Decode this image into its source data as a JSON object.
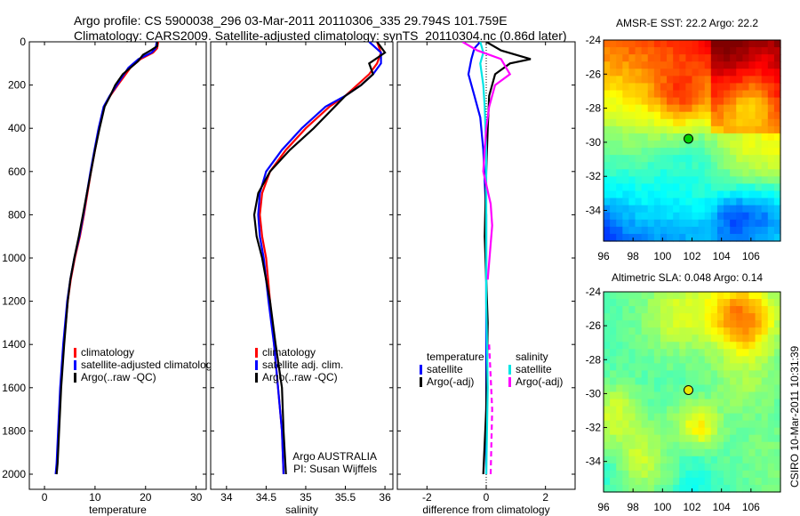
{
  "header": {
    "line1": "Argo profile: CS 5900038_296 03-Mar-2011 20110306_335 29.794S 101.759E",
    "line2": "Climatology: CARS2009. Satellite-adjusted climatology: synTS_20110304.nc (0.86d later)"
  },
  "colors": {
    "climatology": "#ff0000",
    "satellite": "#0000ff",
    "argo": "#000000",
    "sal_satellite": "#00e5e5",
    "sal_argo": "#ff00ff"
  },
  "chart_data": [
    {
      "type": "line",
      "id": "temperature",
      "xlabel": "temperature",
      "ylabel": "",
      "xlim": [
        -3,
        32
      ],
      "ylim": [
        2070,
        0
      ],
      "xticks": [
        0,
        10,
        20,
        30
      ],
      "yticks": [
        0,
        200,
        400,
        600,
        800,
        1000,
        1200,
        1400,
        1600,
        1800,
        2000
      ],
      "legend": {
        "position": "lower-middle",
        "entries": [
          "climatology",
          "satellite-adjusted climatology",
          "Argo(..raw -QC)"
        ]
      },
      "series": [
        {
          "name": "climatology",
          "color_key": "climatology",
          "x": [
            22.5,
            22.3,
            21.5,
            19.0,
            17.0,
            14.5,
            13.0,
            11.8,
            10.8,
            10.0,
            9.2,
            8.5,
            7.8,
            7.0,
            6.0,
            5.2,
            4.6,
            3.8,
            3.2,
            2.8,
            2.5,
            2.3
          ],
          "y": [
            0,
            30,
            50,
            80,
            120,
            200,
            250,
            300,
            400,
            500,
            600,
            700,
            800,
            900,
            1000,
            1100,
            1200,
            1400,
            1600,
            1800,
            1950,
            2000
          ]
        },
        {
          "name": "satellite-adjusted climatology",
          "color_key": "satellite",
          "x": [
            22.2,
            22.0,
            21.2,
            18.6,
            16.6,
            14.3,
            12.9,
            11.7,
            10.7,
            9.9,
            9.1,
            8.4,
            7.7,
            6.9,
            5.9,
            5.1,
            4.5,
            3.7,
            3.1,
            2.7,
            2.4,
            2.2
          ],
          "y": [
            0,
            30,
            50,
            80,
            120,
            200,
            250,
            300,
            400,
            500,
            600,
            700,
            800,
            900,
            1000,
            1100,
            1200,
            1400,
            1600,
            1800,
            1950,
            2000
          ]
        },
        {
          "name": "Argo(..raw -QC)",
          "color_key": "argo",
          "x": [
            22.3,
            22.3,
            21.0,
            19.5,
            18.5,
            17.0,
            15.5,
            14.0,
            13.0,
            11.9,
            10.9,
            10.0,
            9.2,
            8.4,
            7.6,
            6.8,
            5.9,
            5.1,
            4.6,
            3.9,
            3.3,
            2.9,
            2.6,
            2.4
          ],
          "y": [
            0,
            20,
            40,
            60,
            90,
            120,
            150,
            200,
            250,
            300,
            400,
            500,
            600,
            700,
            800,
            900,
            1000,
            1100,
            1200,
            1400,
            1600,
            1800,
            1950,
            2000
          ]
        }
      ]
    },
    {
      "type": "line",
      "id": "salinity",
      "xlabel": "salinity",
      "ylabel": "",
      "xlim": [
        33.8,
        36.1
      ],
      "ylim": [
        2070,
        0
      ],
      "xticks": [
        34,
        34.5,
        35,
        35.5,
        36
      ],
      "xticklabels": [
        "34",
        "34.5",
        "35",
        "35.5",
        "36"
      ],
      "legend": {
        "position": "lower-middle",
        "entries": [
          "climatology",
          "satellite adj. clim.",
          "Argo(..raw -QC)"
        ]
      },
      "annotation": [
        "Argo AUSTRALIA",
        "PI: Susan Wijffels"
      ],
      "series": [
        {
          "name": "climatology",
          "color_key": "climatology",
          "x": [
            35.9,
            35.95,
            35.9,
            35.8,
            35.65,
            35.5,
            35.3,
            35.0,
            34.75,
            34.55,
            34.45,
            34.42,
            34.45,
            34.5,
            34.55,
            34.6,
            34.65,
            34.7,
            34.72
          ],
          "y": [
            0,
            50,
            100,
            150,
            200,
            250,
            300,
            400,
            500,
            600,
            700,
            800,
            900,
            1000,
            1200,
            1400,
            1600,
            1800,
            2000
          ]
        },
        {
          "name": "satellite adj. clim.",
          "color_key": "satellite",
          "x": [
            35.8,
            35.95,
            35.95,
            35.85,
            35.7,
            35.5,
            35.25,
            34.95,
            34.7,
            34.5,
            34.42,
            34.4,
            34.42,
            34.47,
            34.53,
            34.6,
            34.65,
            34.7,
            34.72
          ],
          "y": [
            0,
            50,
            100,
            150,
            200,
            250,
            300,
            400,
            500,
            600,
            700,
            800,
            900,
            1000,
            1200,
            1400,
            1600,
            1800,
            2000
          ]
        },
        {
          "name": "Argo(..raw -QC)",
          "color_key": "argo",
          "x": [
            35.9,
            36.0,
            35.8,
            35.85,
            35.7,
            35.5,
            35.1,
            34.8,
            34.55,
            34.4,
            34.35,
            34.38,
            34.45,
            34.55,
            34.62,
            34.7,
            34.72,
            34.75
          ],
          "y": [
            0,
            50,
            100,
            150,
            200,
            250,
            400,
            500,
            600,
            700,
            800,
            900,
            1000,
            1200,
            1400,
            1600,
            1800,
            2000
          ]
        }
      ]
    },
    {
      "type": "line",
      "id": "difference",
      "xlabel": "difference from climatology",
      "ylabel": "",
      "xlim": [
        -3,
        3
      ],
      "ylim": [
        2070,
        0
      ],
      "xticks": [
        -2,
        0,
        2
      ],
      "legend": {
        "position": "lower-middle",
        "columns": [
          {
            "heading": "temperature",
            "entries": [
              "satellite",
              "Argo(-adj)"
            ]
          },
          {
            "heading": "salinity",
            "entries": [
              "satellite",
              "Argo(-adj)"
            ]
          }
        ]
      },
      "series": [
        {
          "name": "temperature satellite",
          "color_key": "satellite",
          "x": [
            -0.2,
            -0.4,
            -0.5,
            -0.6,
            -0.4,
            -0.2,
            -0.1,
            0.0,
            0.0,
            0.0,
            0.0
          ],
          "y": [
            0,
            30,
            80,
            150,
            250,
            350,
            500,
            800,
            1200,
            1600,
            2000
          ]
        },
        {
          "name": "temperature Argo(-adj)",
          "color_key": "argo",
          "x": [
            0.0,
            0.5,
            1.0,
            1.5,
            0.8,
            0.3,
            0.1,
            0.05,
            0.0,
            -0.05,
            0.05,
            0.0,
            -0.1
          ],
          "y": [
            0,
            40,
            60,
            80,
            100,
            150,
            250,
            400,
            600,
            900,
            1300,
            1700,
            2000
          ]
        },
        {
          "name": "salinity satellite",
          "color_key": "sal_satellite",
          "x": [
            -0.2,
            -0.1,
            -0.2,
            -0.1,
            -0.05,
            0.0,
            0.0,
            0.0,
            0.05,
            0.0
          ],
          "y": [
            0,
            50,
            100,
            200,
            300,
            500,
            800,
            1200,
            1600,
            2000
          ]
        },
        {
          "name": "salinity Argo(-adj)",
          "color_key": "sal_argo",
          "x": [
            -0.8,
            -0.3,
            0.5,
            0.8,
            0.3,
            0.1,
            0.0,
            -0.1,
            0.15,
            0.2,
            0.05,
            0.1,
            0.2,
            0.15
          ],
          "y": [
            0,
            40,
            80,
            150,
            200,
            300,
            400,
            600,
            750,
            850,
            1100,
            1400,
            1700,
            2000
          ],
          "dashed_below": 1300
        }
      ]
    },
    {
      "type": "heatmap",
      "id": "sst-map",
      "title": "AMSR-E SST: 22.2 Argo: 22.2",
      "xlim": [
        96,
        108
      ],
      "ylim": [
        -35.8,
        -24
      ],
      "xticks": [
        96,
        98,
        100,
        102,
        104,
        106
      ],
      "yticks": [
        -24,
        -26,
        -28,
        -30,
        -32,
        -34
      ],
      "marker": {
        "lon": 101.759,
        "lat": -29.794,
        "fill": "#00d000"
      }
    },
    {
      "type": "heatmap",
      "id": "sla-map",
      "title": "Altimetric SLA: 0.048 Argo: 0.14",
      "xlim": [
        96,
        108
      ],
      "ylim": [
        -35.8,
        -24
      ],
      "xticks": [
        96,
        98,
        100,
        102,
        104,
        106
      ],
      "yticks": [
        -24,
        -26,
        -28,
        -30,
        -32,
        -34
      ],
      "marker": {
        "lon": 101.759,
        "lat": -29.794,
        "fill": "#e8e800"
      }
    }
  ],
  "stamp": "CSIRO 10-Mar-2011 10:31:39"
}
